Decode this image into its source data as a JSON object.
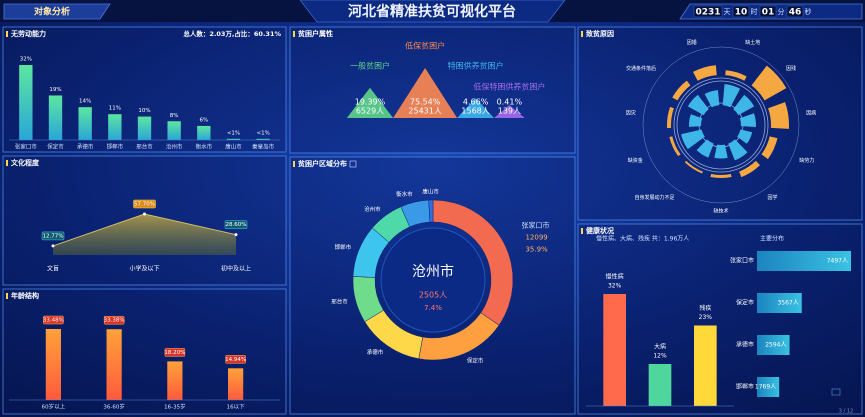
{
  "header": {
    "tab": "对象分析",
    "title": "河北省精准扶贫可视化平台",
    "timer": [
      {
        "num": "0231",
        "unit": "天"
      },
      {
        "num": "10",
        "unit": "时"
      },
      {
        "num": "01",
        "unit": "分"
      },
      {
        "num": "46",
        "unit": "秒"
      }
    ]
  },
  "chart_data": [
    {
      "type": "bar",
      "title": "无劳动能力",
      "subtitle": "总人数：2.03万,占比：60.31%",
      "categories": [
        "张家口市",
        "保定市",
        "承德市",
        "邯郸市",
        "邢台市",
        "沧州市",
        "衡水市",
        "唐山市",
        "秦皇岛市"
      ],
      "values": [
        32,
        19,
        14,
        11,
        10,
        8,
        6,
        0.5,
        0.5
      ],
      "value_labels": [
        "32%",
        "19%",
        "14%",
        "11%",
        "10%",
        "8%",
        "6%",
        "<1%",
        "<1%"
      ]
    },
    {
      "type": "area",
      "title": "文化程度",
      "categories": [
        "文盲",
        "小学及以下",
        "初中及以上"
      ],
      "values": [
        12.77,
        57.7,
        28.6
      ],
      "value_labels": [
        "12.77%",
        "57.70%",
        "28.60%"
      ]
    },
    {
      "type": "bar",
      "title": "年龄结构",
      "categories": [
        "60岁以上",
        "36-60岁",
        "16-35岁",
        "16以下"
      ],
      "values": [
        33.48,
        33.38,
        18.2,
        14.94
      ],
      "value_labels": [
        "33.48%",
        "33.38%",
        "18.20%",
        "14.94%"
      ]
    },
    {
      "type": "pictorial",
      "title": "贫困户属性",
      "categories": [
        "一般贫困户",
        "低保贫困户",
        "特困供养贫困户",
        "低保特困供养贫困户"
      ],
      "values": [
        19.39,
        75.54,
        4.66,
        0.41
      ],
      "value_labels": [
        "19.39%",
        "75.54%",
        "4.66%",
        "0.41%"
      ],
      "counts": [
        6529,
        25431,
        1568,
        139
      ],
      "count_labels": [
        "6529人",
        "25431人",
        "1568人",
        "139人"
      ],
      "colors": [
        "#5fd68a",
        "#ff8a50",
        "#3fb6f0",
        "#a66cf0"
      ]
    },
    {
      "type": "donut",
      "title": "贫困户区域分布",
      "categories": [
        "张家口市",
        "保定市",
        "承德市",
        "邢台市",
        "邯郸市",
        "沧州市",
        "衡水市",
        "唐山市"
      ],
      "values": [
        12099,
        6400,
        4700,
        3300,
        3700,
        2505,
        2000,
        300
      ],
      "value_labels": [
        null,
        null,
        null,
        null,
        null,
        "2505人",
        null,
        null
      ],
      "percent_labels": [
        "35.9%",
        null,
        null,
        null,
        null,
        "7.4%",
        null,
        null
      ],
      "colors": [
        "#f26b50",
        "#ffa040",
        "#ffd84a",
        "#6fdc8c",
        "#3ec5ee",
        "#4fd9a8",
        "#3a9ae8",
        "#2f6fe0"
      ]
    },
    {
      "type": "polar",
      "title": "致贫原因",
      "categories": [
        "缺土地",
        "因残",
        "因病",
        "缺劳力",
        "因学",
        "缺技术",
        "自身发展动力不足",
        "缺资金",
        "因灾",
        "交通条件落后",
        "因婚"
      ],
      "series": [
        {
          "color": "#f5a742",
          "values": [
            5,
            25,
            18,
            8,
            6,
            3,
            2,
            3,
            4,
            6,
            10
          ]
        },
        {
          "color": "#3fb6e8",
          "values": [
            14,
            12,
            10,
            8,
            12,
            9,
            10,
            14,
            8,
            12,
            10
          ]
        }
      ]
    },
    {
      "type": "bar",
      "title": "健康状况",
      "subtitle": "慢性病、大病、残疾 共：1.96万人",
      "categories": [
        "慢性病",
        "大病",
        "残疾"
      ],
      "values": [
        32,
        12,
        23
      ],
      "value_labels": [
        "32%",
        "12%",
        "23%"
      ],
      "colors": [
        "#ff6a4d",
        "#4fd69c",
        "#ffd83a"
      ]
    },
    {
      "type": "hbar",
      "title": "主要分布",
      "categories": [
        "张家口市",
        "保定市",
        "承德市",
        "邯郸市"
      ],
      "values": [
        7497,
        3567,
        2594,
        1769
      ],
      "value_labels": [
        "7497人",
        "3567人",
        "2594人",
        "1769人"
      ]
    }
  ],
  "footer": {
    "page": "3 / 12"
  }
}
